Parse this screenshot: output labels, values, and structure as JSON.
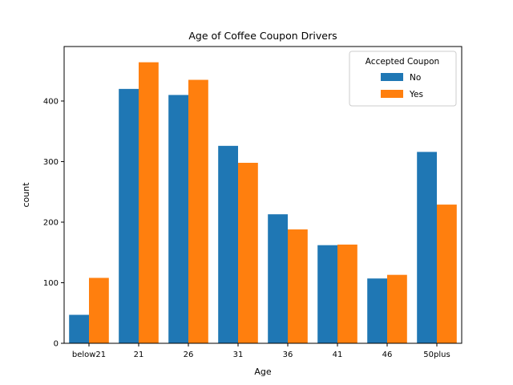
{
  "chart_data": {
    "type": "bar",
    "title": "Age of Coffee Coupon Drivers",
    "xlabel": "Age",
    "ylabel": "count",
    "categories": [
      "below21",
      "21",
      "26",
      "31",
      "36",
      "41",
      "46",
      "50plus"
    ],
    "series": [
      {
        "name": "No",
        "color": "#1f77b4",
        "values": [
          47,
          420,
          410,
          326,
          213,
          162,
          107,
          316
        ]
      },
      {
        "name": "Yes",
        "color": "#ff7f0e",
        "values": [
          108,
          464,
          435,
          298,
          188,
          163,
          113,
          229
        ]
      }
    ],
    "ylim": [
      0,
      490
    ],
    "yticks": [
      0,
      100,
      200,
      300,
      400
    ],
    "legend": {
      "title": "Accepted Coupon",
      "placement": "top-right"
    },
    "grid": false
  }
}
